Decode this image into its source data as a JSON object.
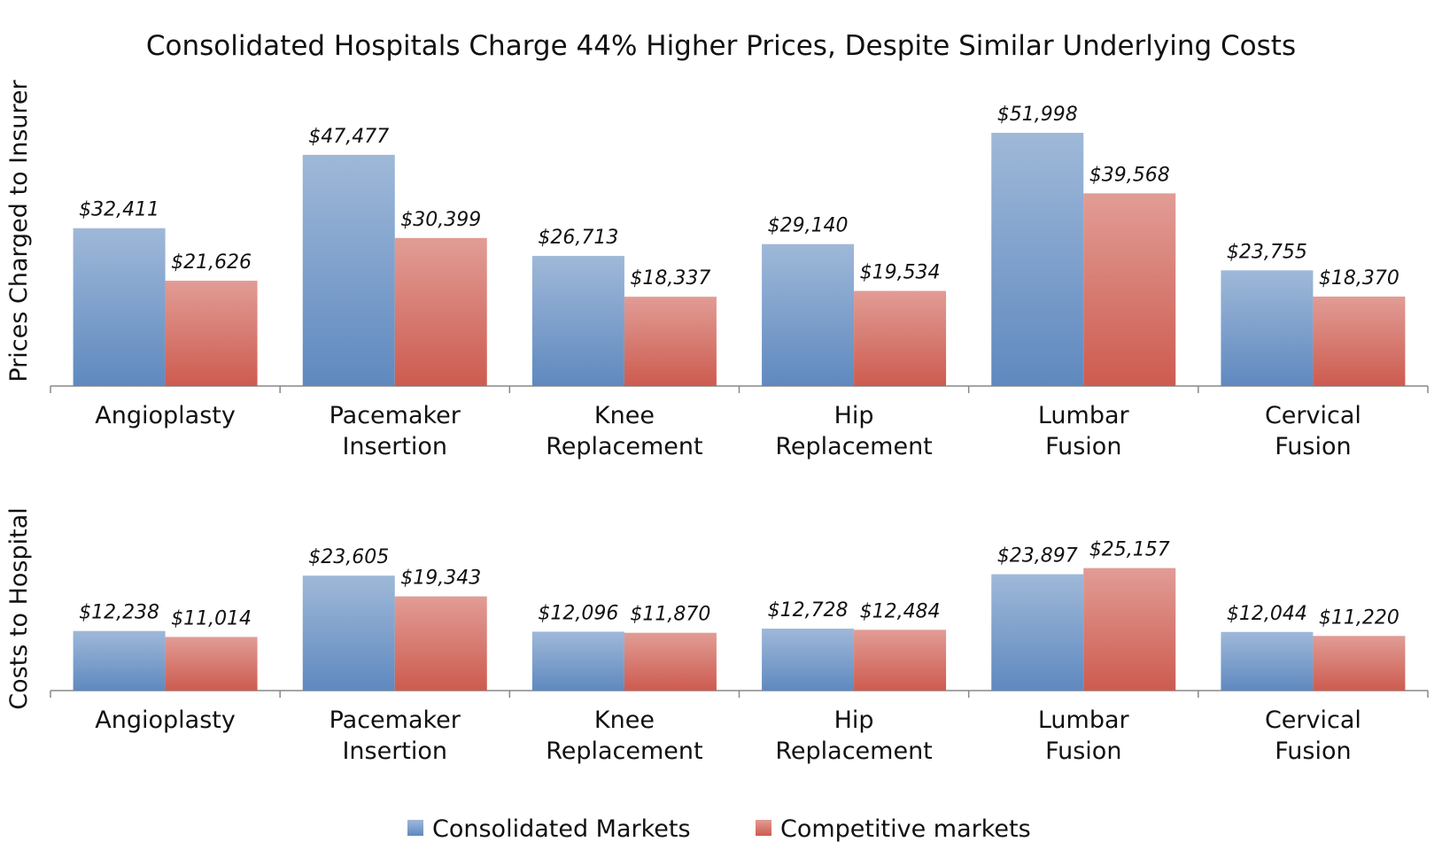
{
  "chart_data": [
    {
      "type": "bar",
      "title": "Consolidated Hospitals Charge 44% Higher Prices, Despite Similar Underlying Costs",
      "ylabel": "Prices Charged to Insurer",
      "categories": [
        "Angioplasty",
        "Pacemaker Insertion",
        "Knee Replacement",
        "Hip Replacement",
        "Lumbar Fusion",
        "Cervical Fusion"
      ],
      "series": [
        {
          "name": "Consolidated Markets",
          "color": "#5f89bf",
          "values": [
            32411,
            47477,
            26713,
            29140,
            51998,
            23755
          ],
          "value_labels": [
            "$32,411",
            "$47,477",
            "$26,713",
            "$29,140",
            "$51,998",
            "$23,755"
          ]
        },
        {
          "name": "Competitive markets",
          "color": "#cd5b4f",
          "values": [
            21626,
            30399,
            18337,
            19534,
            39568,
            18370
          ],
          "value_labels": [
            "$21,626",
            "$30,399",
            "$18,337",
            "$19,534",
            "$39,568",
            "$18,370"
          ]
        }
      ],
      "ylim": [
        0,
        60000
      ],
      "legend": "bottom"
    },
    {
      "type": "bar",
      "ylabel": "Costs to Hospital",
      "categories": [
        "Angioplasty",
        "Pacemaker Insertion",
        "Knee Replacement",
        "Hip Replacement",
        "Lumbar Fusion",
        "Cervical Fusion"
      ],
      "series": [
        {
          "color": "#5f89bf",
          "values": [
            12238,
            23605,
            12096,
            12728,
            23897,
            12044
          ],
          "value_labels": [
            "$12,238",
            "$23,605",
            "$12,096",
            "$12,728",
            "$23,897",
            "$12,044"
          ]
        },
        {
          "color": "#cd5b4f",
          "values": [
            11014,
            19343,
            11870,
            12484,
            25157,
            11220
          ],
          "value_labels": [
            "$11,014",
            "$19,343",
            "$11,870",
            "$12,484",
            "$25,157",
            "$11,220"
          ]
        }
      ],
      "ylim": [
        0,
        30000
      ]
    }
  ]
}
